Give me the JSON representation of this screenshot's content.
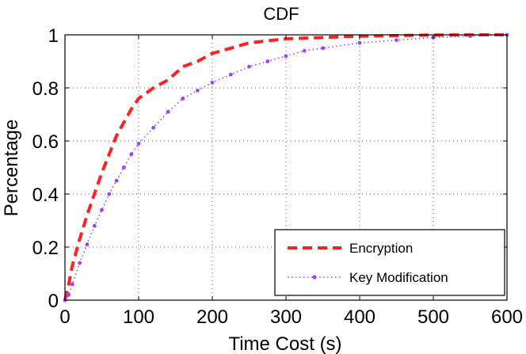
{
  "chart_data": {
    "type": "line",
    "title": "CDF",
    "xlabel": "Time Cost (s)",
    "ylabel": "Percentage",
    "xlim": [
      0,
      600
    ],
    "ylim": [
      0,
      1
    ],
    "xticks": [
      0,
      100,
      200,
      300,
      400,
      500,
      600
    ],
    "yticks": [
      0,
      0.2,
      0.4,
      0.6,
      0.8,
      1
    ],
    "xtick_labels": [
      "0",
      "100",
      "200",
      "300",
      "400",
      "500",
      "600"
    ],
    "ytick_labels": [
      "0",
      "0.2",
      "0.4",
      "0.6",
      "0.8",
      "1"
    ],
    "grid": true,
    "legend_position": "bottom-right",
    "series": [
      {
        "name": "Encryption",
        "color": "#ff2020",
        "style": "dashed",
        "x": [
          0,
          5,
          10,
          20,
          30,
          40,
          50,
          60,
          70,
          80,
          90,
          100,
          120,
          140,
          160,
          180,
          200,
          225,
          250,
          300,
          350,
          400,
          450,
          500,
          550,
          600
        ],
        "y": [
          0,
          0.06,
          0.13,
          0.23,
          0.32,
          0.4,
          0.48,
          0.55,
          0.62,
          0.67,
          0.72,
          0.76,
          0.8,
          0.83,
          0.88,
          0.9,
          0.93,
          0.95,
          0.97,
          0.985,
          0.99,
          0.995,
          0.997,
          0.999,
          1.0,
          1.0
        ]
      },
      {
        "name": "Key Modification",
        "color": "#a040ff",
        "style": "dotted",
        "x": [
          0,
          5,
          10,
          20,
          30,
          40,
          50,
          60,
          70,
          80,
          90,
          100,
          120,
          140,
          160,
          180,
          200,
          225,
          250,
          275,
          300,
          325,
          350,
          400,
          450,
          500,
          550,
          600
        ],
        "y": [
          0,
          0.02,
          0.06,
          0.14,
          0.21,
          0.28,
          0.34,
          0.4,
          0.45,
          0.5,
          0.55,
          0.59,
          0.65,
          0.71,
          0.76,
          0.79,
          0.82,
          0.85,
          0.88,
          0.9,
          0.92,
          0.94,
          0.95,
          0.97,
          0.98,
          0.99,
          0.995,
          1.0
        ]
      }
    ]
  }
}
